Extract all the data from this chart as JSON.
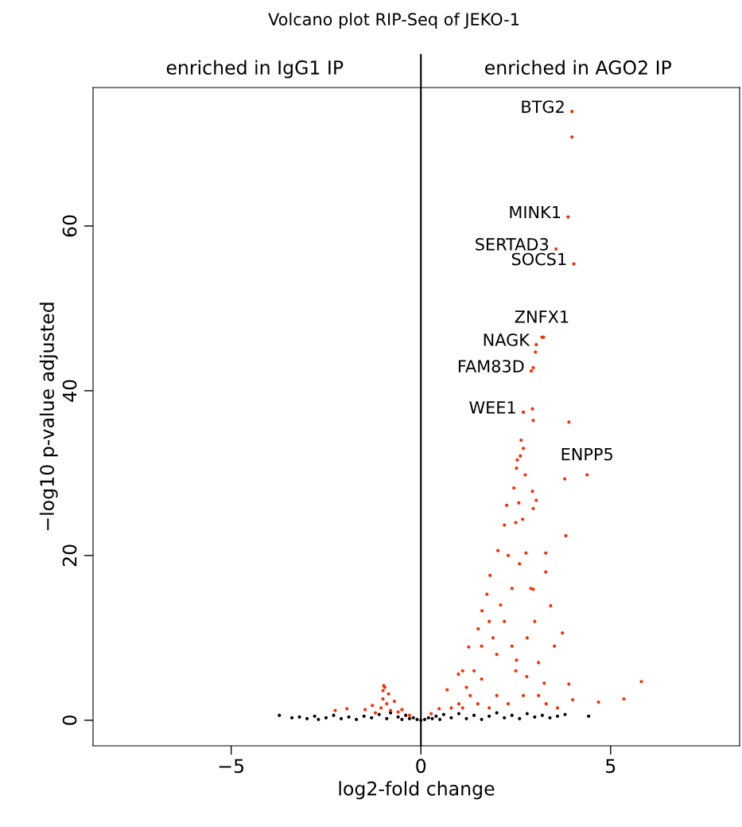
{
  "chart_data": {
    "type": "scatter",
    "title": "Volcano plot RIP-Seq of JEKO-1",
    "xlabel": "log2-fold change",
    "ylabel": "−log10 p-value adjusted",
    "xlim": [
      -8.64,
      8.4
    ],
    "ylim": [
      -3.1,
      76.8
    ],
    "xticks": [
      {
        "value": -5,
        "label": "−5"
      },
      0,
      5
    ],
    "yticks": [
      0,
      20,
      40,
      60
    ],
    "grid": false,
    "marker": "circle",
    "ref_lines": [
      {
        "axis": "x",
        "value": 0,
        "color": "#000000"
      }
    ],
    "annotations": [
      "enriched in IgG1 IP",
      "enriched in AGO2 IP",
      {
        "text": "BTG2",
        "x": 3.98,
        "y": 73.9
      },
      {
        "text": "MINK1",
        "x": 3.88,
        "y": 61.1
      },
      {
        "text": "SERTAD3",
        "x": 3.56,
        "y": 57.2
      },
      {
        "text": "SOCS1",
        "x": 4.03,
        "y": 55.4
      },
      {
        "text": "ZNFX1",
        "x": 3.19,
        "y": 46.5
      },
      {
        "text": "NAGK",
        "x": 3.04,
        "y": 45.6
      },
      {
        "text": "FAM83D",
        "x": 2.91,
        "y": 42.4
      },
      {
        "text": "WEE1",
        "x": 2.7,
        "y": 37.4
      },
      {
        "text": "ENPP5",
        "x": 4.38,
        "y": 29.8
      }
    ],
    "series": [
      {
        "color": "#000000",
        "x": [
          -3.73,
          -3.4,
          -3.2,
          -3.0,
          -2.8,
          -2.7,
          -2.5,
          -2.3,
          -2.1,
          -1.9,
          -1.7,
          -1.5,
          -1.3,
          -1.1,
          -0.9,
          -0.8,
          -0.6,
          -0.5,
          -0.4,
          -0.3,
          -0.2,
          -0.1,
          0.0,
          0.1,
          0.2,
          0.3,
          0.4,
          0.5,
          0.6,
          0.8,
          1.0,
          1.2,
          1.4,
          1.6,
          1.8,
          2.0,
          2.2,
          2.4,
          2.6,
          2.8,
          3.0,
          3.2,
          3.4,
          3.6,
          3.8,
          4.42
        ],
        "values": [
          0.6,
          0.3,
          0.4,
          0.2,
          0.5,
          0.1,
          0.3,
          0.6,
          0.2,
          0.4,
          0.1,
          0.5,
          0.3,
          0.7,
          0.2,
          0.9,
          0.4,
          0.1,
          0.6,
          0.2,
          0.3,
          0.1,
          0.0,
          0.1,
          0.3,
          0.2,
          0.5,
          0.1,
          0.7,
          0.3,
          0.8,
          0.2,
          0.6,
          0.1,
          0.5,
          0.9,
          0.3,
          0.6,
          0.2,
          0.8,
          0.4,
          0.6,
          0.3,
          0.5,
          0.7,
          0.5
        ]
      },
      {
        "color": "#ff2a00",
        "x": [
          3.98,
          3.98,
          3.88,
          3.56,
          4.03,
          3.19,
          3.23,
          3.04,
          3.02,
          2.96,
          2.91,
          2.7,
          2.94,
          2.96,
          3.9,
          4.38,
          3.79,
          2.7,
          2.62,
          2.54,
          2.52,
          2.75,
          2.45,
          2.94,
          3.04,
          2.58,
          2.26,
          2.96,
          2.68,
          2.2,
          3.82,
          2.03,
          2.77,
          3.29,
          3.29,
          1.82,
          2.96,
          1.74,
          3.42,
          1.61,
          1.51,
          3.73,
          3.52,
          1.26,
          5.81,
          5.35,
          4.68,
          4.0,
          3.9,
          3.25,
          2.79,
          2.52,
          0.99,
          0.69,
          0.48,
          0.27,
          1.0,
          1.2,
          1.4,
          1.6,
          1.8,
          1.3,
          1.6,
          2.0,
          2.2,
          2.4,
          2.0,
          2.5,
          2.8,
          3.0,
          2.6,
          2.3,
          1.9,
          1.5,
          1.8,
          2.3,
          2.7,
          3.1,
          3.3,
          3.6,
          2.9,
          3.1,
          2.4,
          1.1,
          0.8,
          2.1,
          2.5,
          1.1,
          2.64,
          -0.3,
          -0.5,
          -0.7,
          -0.85,
          -0.95,
          -0.98,
          -1.0,
          -0.9,
          -0.8,
          -1.05,
          -1.0,
          -0.6,
          -1.28,
          -1.47,
          -1.95,
          -2.26,
          -1.2
        ],
        "values": [
          73.9,
          70.8,
          61.1,
          57.2,
          55.4,
          46.5,
          46.5,
          45.6,
          44.7,
          42.8,
          42.4,
          37.4,
          37.8,
          36.4,
          36.2,
          29.8,
          29.3,
          33.0,
          32.1,
          31.6,
          30.6,
          29.8,
          28.2,
          27.8,
          26.7,
          26.4,
          26.1,
          25.7,
          24.4,
          23.7,
          22.4,
          20.6,
          20.3,
          20.3,
          18.0,
          17.6,
          15.9,
          15.3,
          13.9,
          13.3,
          11.1,
          10.6,
          9.0,
          8.9,
          4.7,
          2.6,
          2.2,
          2.5,
          4.4,
          4.5,
          5.3,
          7.3,
          5.6,
          3.7,
          1.4,
          0.8,
          2.0,
          4.0,
          6.0,
          9.0,
          12.0,
          3.0,
          5.0,
          8.0,
          12.0,
          16.0,
          3.0,
          6.0,
          10.0,
          12.0,
          19.0,
          20.0,
          10.0,
          2.0,
          1.5,
          2.0,
          3.0,
          3.0,
          2.0,
          1.5,
          16.0,
          7.0,
          9.0,
          1.5,
          1.5,
          14.0,
          24.0,
          6.0,
          34.0,
          0.6,
          1.3,
          2.3,
          3.2,
          4.0,
          4.2,
          3.6,
          2.0,
          1.2,
          1.5,
          2.6,
          1.0,
          1.8,
          1.3,
          1.4,
          1.2,
          0.9
        ]
      }
    ]
  }
}
